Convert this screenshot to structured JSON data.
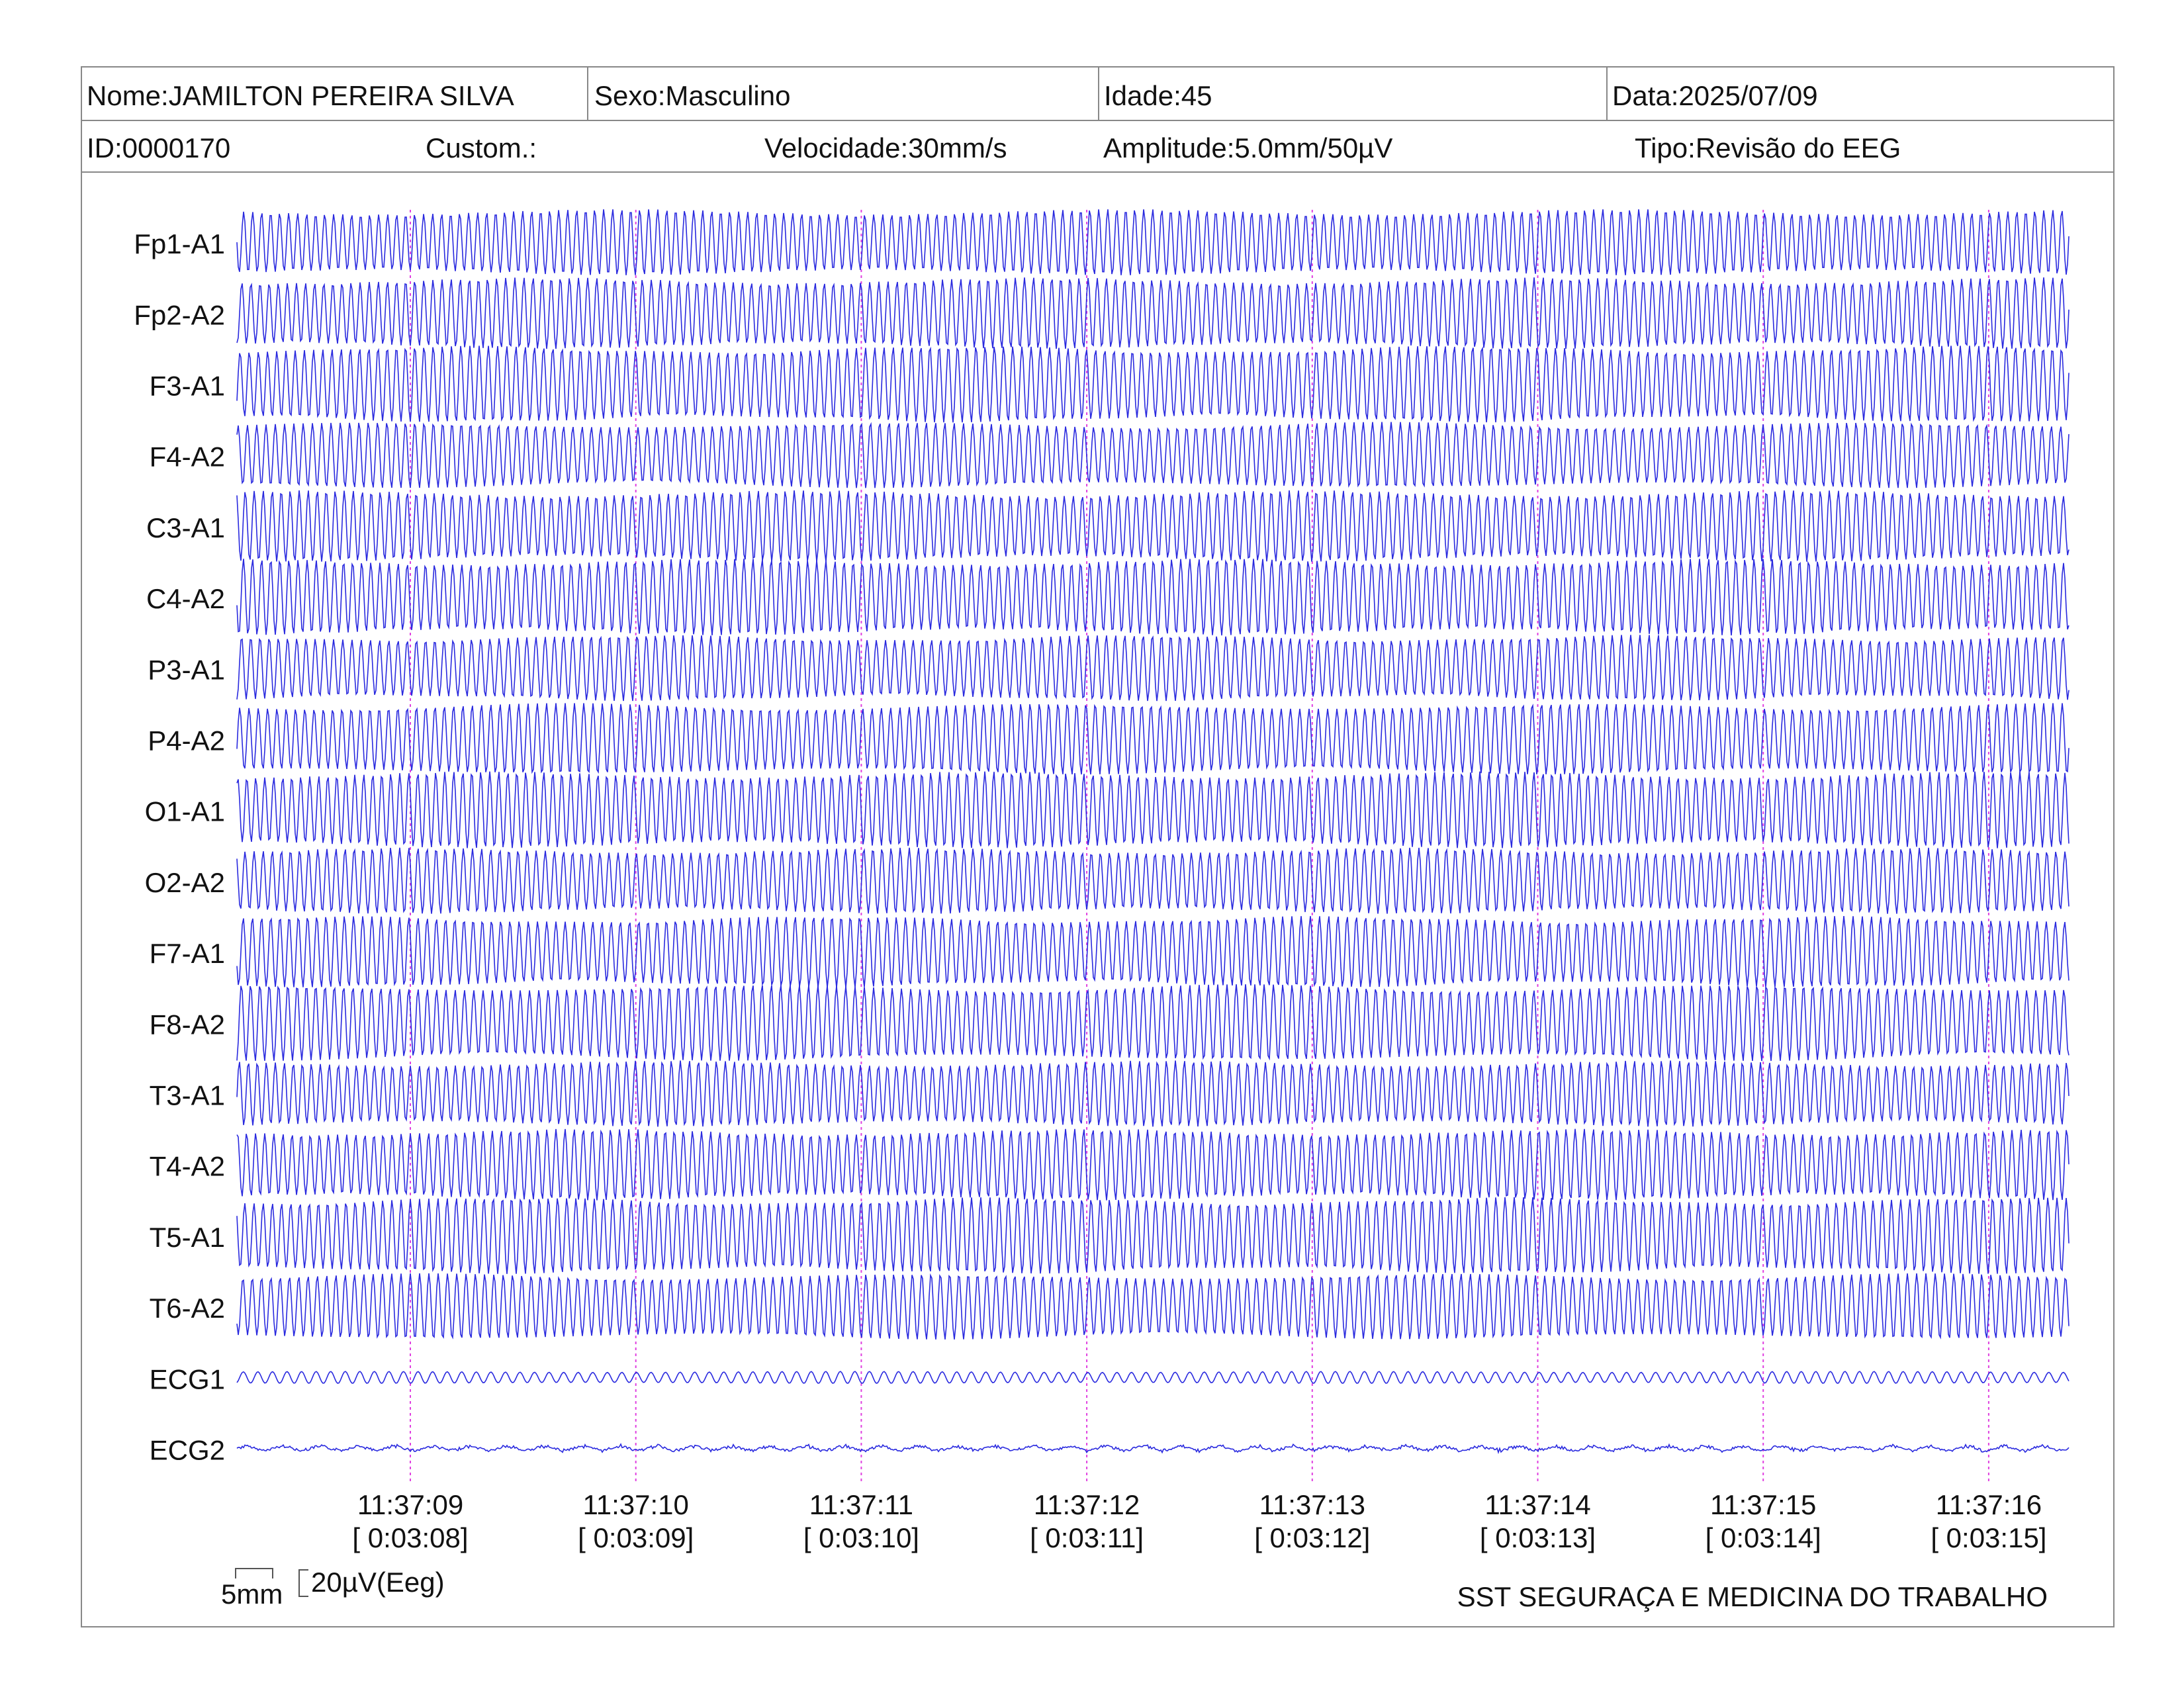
{
  "header": {
    "row1": [
      "Nome:JAMILTON PEREIRA SILVA",
      "Sexo:Masculino",
      "Idade:45",
      "Data:2025/07/09"
    ],
    "row2": [
      "ID:0000170",
      "Custom.:",
      "Velocidade:30mm/s",
      "Amplitude:5.0mm/50µV",
      "Tipo:Revisão do EEG"
    ]
  },
  "channels": [
    "Fp1-A1",
    "Fp2-A2",
    "F3-A1",
    "F4-A2",
    "C3-A1",
    "C4-A2",
    "P3-A1",
    "P4-A2",
    "O1-A1",
    "O2-A2",
    "F7-A1",
    "F8-A2",
    "T3-A1",
    "T4-A2",
    "T5-A1",
    "T6-A2",
    "ECG1",
    "ECG2"
  ],
  "time_marks": [
    {
      "clock": "11:37:09",
      "elapsed": "[ 0:03:08]"
    },
    {
      "clock": "11:37:10",
      "elapsed": "[ 0:03:09]"
    },
    {
      "clock": "11:37:11",
      "elapsed": "[ 0:03:10]"
    },
    {
      "clock": "11:37:12",
      "elapsed": "[ 0:03:11]"
    },
    {
      "clock": "11:37:13",
      "elapsed": "[ 0:03:12]"
    },
    {
      "clock": "11:37:14",
      "elapsed": "[ 0:03:13]"
    },
    {
      "clock": "11:37:15",
      "elapsed": "[ 0:03:14]"
    },
    {
      "clock": "11:37:16",
      "elapsed": "[ 0:03:15]"
    }
  ],
  "scale": {
    "time": "5mm",
    "amplitude": "20µV(Eeg)"
  },
  "footer": "SST SEGURAÇA E MEDICINA DO TRABALHO"
}
